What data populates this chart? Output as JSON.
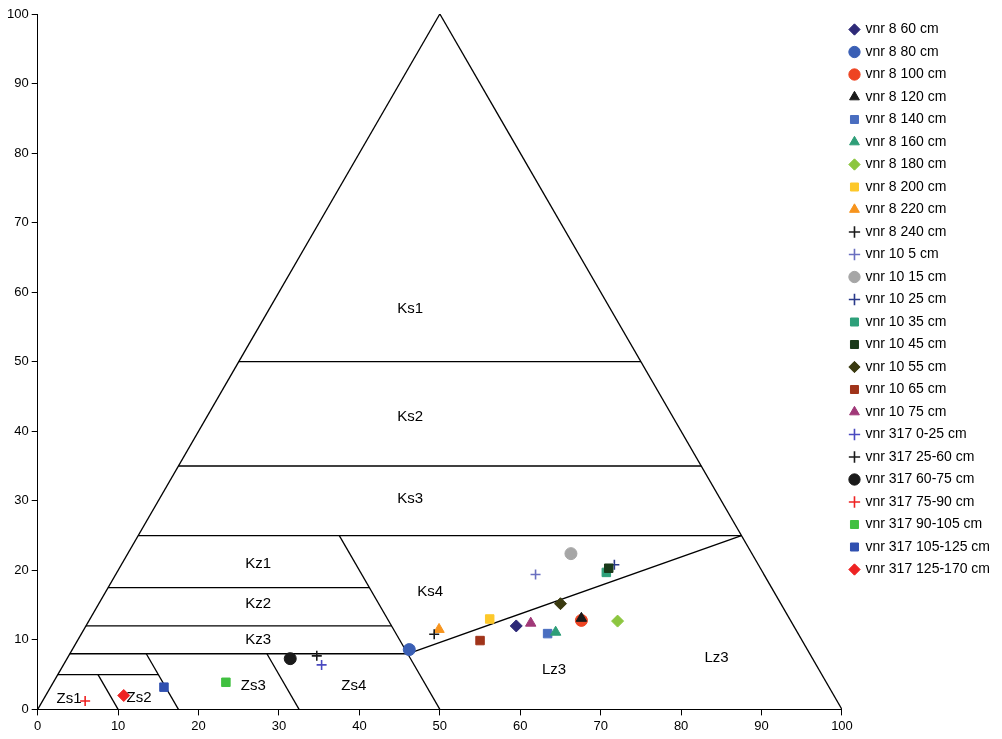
{
  "chart_data": {
    "type": "scatter",
    "xlim": [
      0,
      100
    ],
    "ylim": [
      0,
      100
    ],
    "xticks": [
      0,
      10,
      20,
      30,
      40,
      50,
      60,
      70,
      80,
      90,
      100
    ],
    "yticks": [
      0,
      10,
      20,
      30,
      40,
      50,
      60,
      70,
      80,
      90,
      100
    ],
    "grid": false,
    "legend": "right",
    "annotations": [
      "Ks1",
      "Ks2",
      "Ks3",
      "Ks4",
      "Kz1",
      "Kz2",
      "Kz3",
      "Lz3",
      "Lz3",
      "Zs1",
      "Zs2",
      "Zs3",
      "Zs4"
    ],
    "series": [
      {
        "type": "line",
        "color": "#000000",
        "marker": "none",
        "x": [
          0,
          50
        ],
        "values": [
          0,
          100
        ]
      },
      {
        "type": "line",
        "color": "#000000",
        "marker": "none",
        "x": [
          50,
          100
        ],
        "values": [
          100,
          0
        ]
      },
      {
        "type": "line",
        "color": "#000000",
        "marker": "none",
        "x": [
          25,
          75
        ],
        "values": [
          50,
          50
        ]
      },
      {
        "type": "line",
        "color": "#000000",
        "marker": "none",
        "x": [
          17.5,
          82.5
        ],
        "values": [
          35,
          35
        ]
      },
      {
        "type": "line",
        "color": "#000000",
        "marker": "none",
        "x": [
          12.5,
          87.5
        ],
        "values": [
          25,
          25
        ]
      },
      {
        "type": "line",
        "color": "#000000",
        "marker": "none",
        "x": [
          8.75,
          41.3
        ],
        "values": [
          17.5,
          17.5
        ]
      },
      {
        "type": "line",
        "color": "#000000",
        "marker": "none",
        "x": [
          6,
          44
        ],
        "values": [
          12,
          12
        ]
      },
      {
        "type": "line",
        "color": "#000000",
        "marker": "none",
        "x": [
          37.5,
          46
        ],
        "values": [
          25,
          8
        ]
      },
      {
        "type": "line",
        "color": "#000000",
        "marker": "none",
        "x": [
          4,
          46
        ],
        "values": [
          8,
          8
        ]
      },
      {
        "type": "line",
        "color": "#000000",
        "marker": "none",
        "x": [
          46,
          87.5
        ],
        "values": [
          8,
          25
        ]
      },
      {
        "type": "line",
        "color": "#000000",
        "marker": "none",
        "x": [
          46,
          50
        ],
        "values": [
          8,
          0
        ]
      },
      {
        "type": "line",
        "color": "#000000",
        "marker": "none",
        "x": [
          2.5,
          15
        ],
        "values": [
          5,
          5
        ]
      },
      {
        "type": "line",
        "color": "#000000",
        "marker": "none",
        "x": [
          13.5,
          17.5
        ],
        "values": [
          8,
          0
        ]
      },
      {
        "type": "line",
        "color": "#000000",
        "marker": "none",
        "x": [
          7.5,
          10
        ],
        "values": [
          5,
          0
        ]
      },
      {
        "type": "line",
        "color": "#000000",
        "marker": "none",
        "x": [
          28.5,
          32.5
        ],
        "values": [
          8,
          0
        ]
      },
      {
        "name": "vnr 8 60 cm",
        "color": "#2e2a78",
        "marker": "diamond",
        "x": [
          59.5
        ],
        "values": [
          12.0
        ]
      },
      {
        "name": "vnr 8 80 cm",
        "color": "#3a5fb5",
        "marker": "circle",
        "x": [
          46.2
        ],
        "values": [
          8.6
        ]
      },
      {
        "name": "vnr 8 100 cm",
        "color": "#ee4422",
        "marker": "circle",
        "x": [
          67.6
        ],
        "values": [
          12.8
        ]
      },
      {
        "name": "vnr 8 120 cm",
        "color": "#1a1a1a",
        "marker": "triangle",
        "x": [
          67.6
        ],
        "values": [
          13.1
        ]
      },
      {
        "name": "vnr 8 140 cm",
        "color": "#4a6ec0",
        "marker": "square",
        "x": [
          63.4
        ],
        "values": [
          10.9
        ]
      },
      {
        "name": "vnr 8 160 cm",
        "color": "#2e9e78",
        "marker": "triangle",
        "x": [
          64.4
        ],
        "values": [
          11.1
        ]
      },
      {
        "name": "vnr 8 180 cm",
        "color": "#8cc63f",
        "marker": "diamond",
        "x": [
          72.1
        ],
        "values": [
          12.7
        ]
      },
      {
        "name": "vnr 8 200 cm",
        "color": "#fdc82a",
        "marker": "square",
        "x": [
          56.2
        ],
        "values": [
          13.0
        ]
      },
      {
        "name": "vnr 8 220 cm",
        "color": "#f7941d",
        "marker": "triangle",
        "x": [
          49.9
        ],
        "values": [
          11.5
        ]
      },
      {
        "name": "vnr 8 240 cm",
        "color": "#1a1a1a",
        "marker": "cross",
        "x": [
          49.3
        ],
        "values": [
          10.8
        ]
      },
      {
        "name": "vnr 10 5 cm",
        "color": "#6a6fc0",
        "marker": "cross",
        "x": [
          61.9
        ],
        "values": [
          19.4
        ]
      },
      {
        "name": "vnr 10 15 cm",
        "color": "#a6a6a6",
        "marker": "circle",
        "x": [
          66.3
        ],
        "values": [
          22.4
        ]
      },
      {
        "name": "vnr 10 25 cm",
        "color": "#2a3a8a",
        "marker": "cross",
        "x": [
          71.7
        ],
        "values": [
          20.8
        ]
      },
      {
        "name": "vnr 10 35 cm",
        "color": "#2ea07a",
        "marker": "square",
        "x": [
          70.7
        ],
        "values": [
          19.7
        ]
      },
      {
        "name": "vnr 10 45 cm",
        "color": "#1a3a1a",
        "marker": "square",
        "x": [
          71.0
        ],
        "values": [
          20.3
        ]
      },
      {
        "name": "vnr 10 55 cm",
        "color": "#3a3a10",
        "marker": "diamond",
        "x": [
          65.0
        ],
        "values": [
          15.2
        ]
      },
      {
        "name": "vnr 10 65 cm",
        "color": "#a0341a",
        "marker": "square",
        "x": [
          55.0
        ],
        "values": [
          9.9
        ]
      },
      {
        "name": "vnr 10 75 cm",
        "color": "#a03878",
        "marker": "triangle",
        "x": [
          61.3
        ],
        "values": [
          12.4
        ]
      },
      {
        "name": "vnr 317 0-25 cm",
        "color": "#4a4ac0",
        "marker": "cross",
        "x": [
          35.3
        ],
        "values": [
          6.4
        ]
      },
      {
        "name": "vnr 317 25-60 cm",
        "color": "#1a1a1a",
        "marker": "cross",
        "x": [
          34.7
        ],
        "values": [
          7.7
        ]
      },
      {
        "name": "vnr 317 60-75 cm",
        "color": "#1a1a1a",
        "marker": "circle",
        "x": [
          31.4
        ],
        "values": [
          7.3
        ]
      },
      {
        "name": "vnr 317 75-90 cm",
        "color": "#ee2222",
        "marker": "cross",
        "x": [
          5.9
        ],
        "values": [
          1.2
        ]
      },
      {
        "name": "vnr 317 90-105 cm",
        "color": "#40c040",
        "marker": "square",
        "x": [
          23.4
        ],
        "values": [
          3.9
        ]
      },
      {
        "name": "vnr 317 105-125 cm",
        "color": "#3050b0",
        "marker": "square",
        "x": [
          15.7
        ],
        "values": [
          3.2
        ]
      },
      {
        "name": "vnr 317 125-170 cm",
        "color": "#ee2222",
        "marker": "diamond",
        "x": [
          10.7
        ],
        "values": [
          2.0
        ]
      }
    ]
  }
}
